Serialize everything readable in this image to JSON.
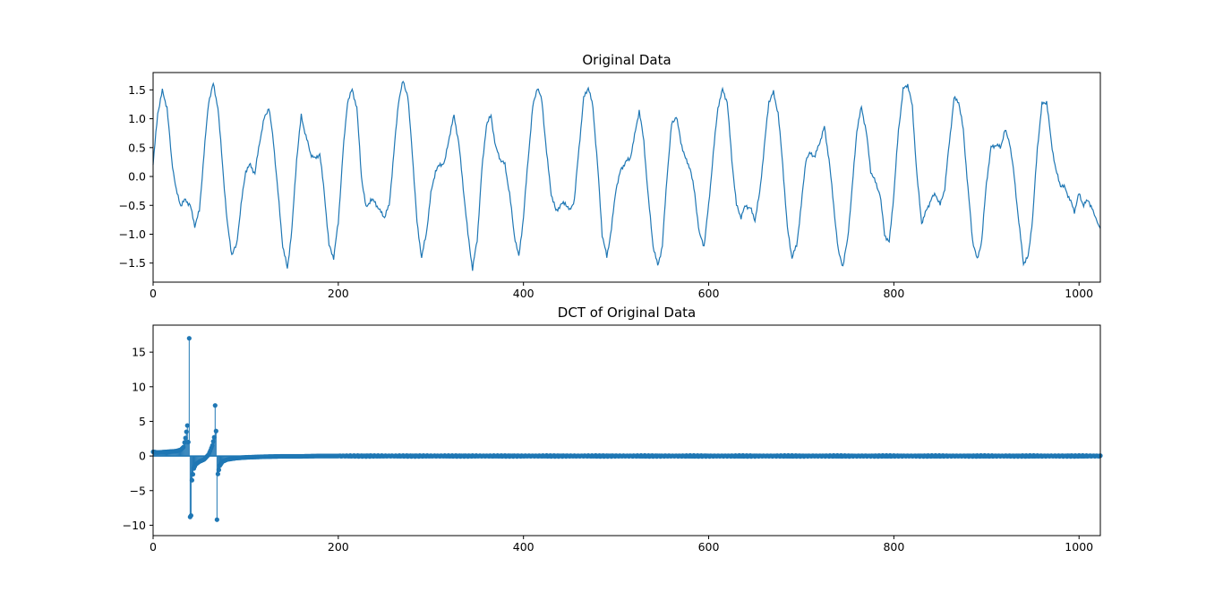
{
  "chart_data": [
    {
      "type": "line",
      "title": "Original Data",
      "xlabel": "",
      "ylabel": "",
      "xlim": [
        0,
        1023
      ],
      "ylim": [
        -1.83,
        1.8
      ],
      "x_ticks": [
        0,
        200,
        400,
        600,
        800,
        1000
      ],
      "y_ticks": [
        -1.5,
        -1.0,
        -0.5,
        0.0,
        0.5,
        1.0,
        1.5
      ],
      "x_tick_labels": [
        "0",
        "200",
        "400",
        "600",
        "800",
        "1000"
      ],
      "y_tick_labels": [
        "−1.5",
        "−1.0",
        "−0.5",
        "0.0",
        "0.5",
        "1.0",
        "1.5"
      ],
      "color": "#1f77b4",
      "series": [
        {
          "points": [
            [
              0,
              0.2
            ],
            [
              5,
              1.1
            ],
            [
              10,
              1.48
            ],
            [
              15,
              1.2
            ],
            [
              20,
              0.3
            ],
            [
              25,
              -0.25
            ],
            [
              30,
              -0.5
            ],
            [
              35,
              -0.4
            ],
            [
              40,
              -0.5
            ],
            [
              45,
              -0.85
            ],
            [
              50,
              -0.6
            ],
            [
              55,
              0.4
            ],
            [
              60,
              1.3
            ],
            [
              65,
              1.6
            ],
            [
              70,
              1.2
            ],
            [
              75,
              0.2
            ],
            [
              80,
              -0.8
            ],
            [
              85,
              -1.35
            ],
            [
              90,
              -1.2
            ],
            [
              95,
              -0.5
            ],
            [
              100,
              0.1
            ],
            [
              105,
              0.2
            ],
            [
              110,
              0.05
            ],
            [
              115,
              0.6
            ],
            [
              120,
              1.0
            ],
            [
              125,
              1.2
            ],
            [
              130,
              0.6
            ],
            [
              135,
              -0.3
            ],
            [
              140,
              -1.2
            ],
            [
              145,
              -1.6
            ],
            [
              150,
              -0.9
            ],
            [
              155,
              0.3
            ],
            [
              160,
              1.05
            ],
            [
              165,
              0.7
            ],
            [
              170,
              0.4
            ],
            [
              175,
              0.3
            ],
            [
              180,
              0.4
            ],
            [
              185,
              -0.3
            ],
            [
              190,
              -1.2
            ],
            [
              195,
              -1.4
            ],
            [
              200,
              -0.8
            ],
            [
              205,
              0.4
            ],
            [
              210,
              1.3
            ],
            [
              215,
              1.5
            ],
            [
              220,
              1.2
            ],
            [
              225,
              0.0
            ],
            [
              230,
              -0.55
            ],
            [
              235,
              -0.4
            ],
            [
              240,
              -0.45
            ],
            [
              245,
              -0.6
            ],
            [
              250,
              -0.7
            ],
            [
              255,
              -0.5
            ],
            [
              260,
              0.4
            ],
            [
              265,
              1.3
            ],
            [
              270,
              1.65
            ],
            [
              275,
              1.4
            ],
            [
              280,
              0.4
            ],
            [
              285,
              -0.8
            ],
            [
              290,
              -1.4
            ],
            [
              295,
              -1.0
            ],
            [
              300,
              -0.3
            ],
            [
              305,
              0.1
            ],
            [
              310,
              0.2
            ],
            [
              315,
              0.25
            ],
            [
              320,
              0.7
            ],
            [
              325,
              1.05
            ],
            [
              330,
              0.6
            ],
            [
              335,
              -0.2
            ],
            [
              340,
              -1.0
            ],
            [
              345,
              -1.6
            ],
            [
              350,
              -1.1
            ],
            [
              355,
              0.1
            ],
            [
              360,
              0.9
            ],
            [
              365,
              1.05
            ],
            [
              370,
              0.5
            ],
            [
              375,
              0.3
            ],
            [
              380,
              0.2
            ],
            [
              385,
              -0.3
            ],
            [
              390,
              -1.0
            ],
            [
              395,
              -1.4
            ],
            [
              400,
              -0.7
            ],
            [
              405,
              0.3
            ],
            [
              410,
              1.2
            ],
            [
              415,
              1.55
            ],
            [
              420,
              1.3
            ],
            [
              425,
              0.4
            ],
            [
              430,
              -0.3
            ],
            [
              435,
              -0.6
            ],
            [
              440,
              -0.5
            ],
            [
              445,
              -0.45
            ],
            [
              450,
              -0.6
            ],
            [
              455,
              -0.4
            ],
            [
              460,
              0.5
            ],
            [
              465,
              1.35
            ],
            [
              470,
              1.55
            ],
            [
              475,
              1.2
            ],
            [
              480,
              0.2
            ],
            [
              485,
              -1.0
            ],
            [
              490,
              -1.4
            ],
            [
              495,
              -0.9
            ],
            [
              500,
              -0.2
            ],
            [
              505,
              0.1
            ],
            [
              510,
              0.25
            ],
            [
              515,
              0.3
            ],
            [
              520,
              0.7
            ],
            [
              525,
              1.15
            ],
            [
              530,
              0.6
            ],
            [
              535,
              -0.4
            ],
            [
              540,
              -1.2
            ],
            [
              545,
              -1.55
            ],
            [
              550,
              -1.2
            ],
            [
              555,
              0.0
            ],
            [
              560,
              0.9
            ],
            [
              565,
              1.05
            ],
            [
              570,
              0.6
            ],
            [
              575,
              0.3
            ],
            [
              580,
              0.15
            ],
            [
              585,
              -0.3
            ],
            [
              590,
              -1.0
            ],
            [
              595,
              -1.2
            ],
            [
              600,
              -0.5
            ],
            [
              605,
              0.4
            ],
            [
              610,
              1.2
            ],
            [
              615,
              1.5
            ],
            [
              620,
              1.3
            ],
            [
              625,
              0.3
            ],
            [
              630,
              -0.5
            ],
            [
              635,
              -0.7
            ],
            [
              640,
              -0.5
            ],
            [
              645,
              -0.55
            ],
            [
              650,
              -0.75
            ],
            [
              655,
              -0.3
            ],
            [
              660,
              0.5
            ],
            [
              665,
              1.3
            ],
            [
              670,
              1.45
            ],
            [
              675,
              1.1
            ],
            [
              680,
              0.2
            ],
            [
              685,
              -0.9
            ],
            [
              690,
              -1.4
            ],
            [
              695,
              -1.2
            ],
            [
              700,
              -0.5
            ],
            [
              705,
              0.3
            ],
            [
              710,
              0.4
            ],
            [
              715,
              0.35
            ],
            [
              720,
              0.6
            ],
            [
              725,
              0.85
            ],
            [
              730,
              0.3
            ],
            [
              735,
              -0.5
            ],
            [
              740,
              -1.3
            ],
            [
              745,
              -1.55
            ],
            [
              750,
              -1.1
            ],
            [
              755,
              -0.2
            ],
            [
              760,
              0.8
            ],
            [
              765,
              1.2
            ],
            [
              770,
              0.8
            ],
            [
              775,
              0.1
            ],
            [
              780,
              -0.1
            ],
            [
              785,
              -0.3
            ],
            [
              790,
              -1.0
            ],
            [
              795,
              -1.15
            ],
            [
              800,
              -0.3
            ],
            [
              805,
              0.8
            ],
            [
              810,
              1.5
            ],
            [
              815,
              1.6
            ],
            [
              820,
              1.2
            ],
            [
              825,
              0.0
            ],
            [
              830,
              -0.8
            ],
            [
              835,
              -0.6
            ],
            [
              840,
              -0.4
            ],
            [
              845,
              -0.3
            ],
            [
              850,
              -0.5
            ],
            [
              855,
              -0.2
            ],
            [
              860,
              0.6
            ],
            [
              865,
              1.35
            ],
            [
              870,
              1.3
            ],
            [
              875,
              0.8
            ],
            [
              880,
              -0.2
            ],
            [
              885,
              -1.1
            ],
            [
              890,
              -1.45
            ],
            [
              895,
              -1.1
            ],
            [
              900,
              -0.1
            ],
            [
              905,
              0.5
            ],
            [
              910,
              0.55
            ],
            [
              915,
              0.5
            ],
            [
              920,
              0.8
            ],
            [
              925,
              0.6
            ],
            [
              930,
              0.0
            ],
            [
              935,
              -0.8
            ],
            [
              940,
              -1.5
            ],
            [
              945,
              -1.4
            ],
            [
              950,
              -0.7
            ],
            [
              955,
              0.5
            ],
            [
              960,
              1.25
            ],
            [
              965,
              1.3
            ],
            [
              970,
              0.6
            ],
            [
              975,
              0.1
            ],
            [
              980,
              -0.15
            ],
            [
              985,
              -0.2
            ],
            [
              990,
              -0.4
            ],
            [
              995,
              -0.6
            ],
            [
              1000,
              -0.3
            ],
            [
              1005,
              -0.5
            ],
            [
              1010,
              -0.4
            ],
            [
              1015,
              -0.6
            ],
            [
              1023,
              -0.9
            ]
          ]
        }
      ]
    },
    {
      "type": "stem",
      "title": "DCT of Original Data",
      "xlabel": "",
      "ylabel": "",
      "xlim": [
        0,
        1023
      ],
      "ylim": [
        -11.5,
        18.9
      ],
      "x_ticks": [
        0,
        200,
        400,
        600,
        800,
        1000
      ],
      "y_ticks": [
        -10,
        -5,
        0,
        5,
        10,
        15
      ],
      "x_tick_labels": [
        "0",
        "200",
        "400",
        "600",
        "800",
        "1000"
      ],
      "y_tick_labels": [
        "−10",
        "−5",
        "0",
        "5",
        "10",
        "15"
      ],
      "color": "#1f77b4",
      "series": [
        {
          "points": [
            [
              0,
              0.6
            ],
            [
              5,
              0.5
            ],
            [
              10,
              0.55
            ],
            [
              15,
              0.6
            ],
            [
              20,
              0.65
            ],
            [
              25,
              0.7
            ],
            [
              30,
              0.9
            ],
            [
              33,
              1.3
            ],
            [
              35,
              2.6
            ],
            [
              37,
              4.4
            ],
            [
              38,
              2.0
            ],
            [
              39,
              17.0
            ],
            [
              40,
              -8.8
            ],
            [
              41,
              -8.6
            ],
            [
              42,
              -3.5
            ],
            [
              44,
              -1.8
            ],
            [
              46,
              -1.2
            ],
            [
              50,
              -0.8
            ],
            [
              55,
              -0.5
            ],
            [
              60,
              0.2
            ],
            [
              62,
              0.8
            ],
            [
              64,
              1.5
            ],
            [
              66,
              2.7
            ],
            [
              67,
              7.3
            ],
            [
              68,
              3.6
            ],
            [
              69,
              -9.2
            ],
            [
              70,
              -2.6
            ],
            [
              72,
              -1.4
            ],
            [
              75,
              -0.8
            ],
            [
              80,
              -0.5
            ],
            [
              90,
              -0.3
            ],
            [
              100,
              -0.2
            ],
            [
              120,
              -0.1
            ],
            [
              140,
              -0.05
            ],
            [
              160,
              -0.05
            ],
            [
              180,
              0.0
            ],
            [
              200,
              0.0
            ]
          ],
          "tail_range": [
            200,
            1023
          ],
          "tail_amplitude": 0.08
        }
      ]
    }
  ]
}
